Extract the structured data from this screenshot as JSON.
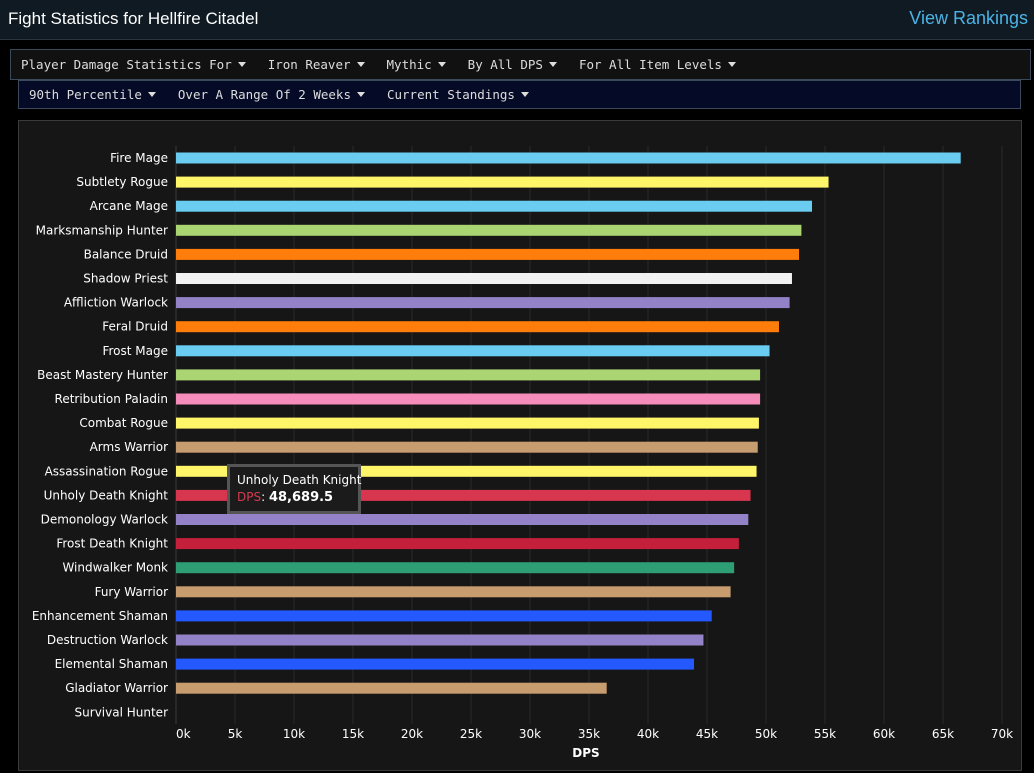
{
  "header": {
    "title": "Fight Statistics for Hellfire Citadel",
    "rankings_link": "View Rankings"
  },
  "filters_row1": [
    {
      "label": "Player Damage Statistics For",
      "name": "filter-statistics-type"
    },
    {
      "label": "Iron Reaver",
      "name": "filter-boss"
    },
    {
      "label": "Mythic",
      "name": "filter-difficulty"
    },
    {
      "label": "By All DPS",
      "name": "filter-metric"
    },
    {
      "label": "For All Item Levels",
      "name": "filter-item-level"
    }
  ],
  "filters_row2": [
    {
      "label": "90th Percentile",
      "name": "filter-percentile"
    },
    {
      "label": "Over A Range Of 2 Weeks",
      "name": "filter-range"
    },
    {
      "label": "Current Standings",
      "name": "filter-standings"
    }
  ],
  "tooltip": {
    "name": "Unholy Death Knight",
    "key": "DPS",
    "value": "48,689.5"
  },
  "chart_data": {
    "type": "bar",
    "orientation": "horizontal",
    "title": "",
    "xlabel": "DPS",
    "ylabel": "",
    "xlim": [
      0,
      70000
    ],
    "xticks": [
      0,
      5000,
      10000,
      15000,
      20000,
      25000,
      30000,
      35000,
      40000,
      45000,
      50000,
      55000,
      60000,
      65000,
      70000
    ],
    "xtick_labels": [
      "0k",
      "5k",
      "10k",
      "15k",
      "20k",
      "25k",
      "30k",
      "35k",
      "40k",
      "45k",
      "50k",
      "55k",
      "60k",
      "65k",
      "70k"
    ],
    "grid": true,
    "legend": "none",
    "categories": [
      "Fire Mage",
      "Subtlety Rogue",
      "Arcane Mage",
      "Marksmanship Hunter",
      "Balance Druid",
      "Shadow Priest",
      "Affliction Warlock",
      "Feral Druid",
      "Frost Mage",
      "Beast Mastery Hunter",
      "Retribution Paladin",
      "Combat Rogue",
      "Arms Warrior",
      "Assassination Rogue",
      "Unholy Death Knight",
      "Demonology Warlock",
      "Frost Death Knight",
      "Windwalker Monk",
      "Fury Warrior",
      "Enhancement Shaman",
      "Destruction Warlock",
      "Elemental Shaman",
      "Gladiator Warrior",
      "Survival Hunter"
    ],
    "values": [
      66500,
      55300,
      53900,
      53000,
      52800,
      52200,
      52000,
      51100,
      50300,
      49500,
      49500,
      49400,
      49300,
      49200,
      48689.5,
      48500,
      47700,
      47300,
      47000,
      45400,
      44700,
      43900,
      36500,
      0
    ],
    "colors": [
      "#69ccf0",
      "#fff569",
      "#69ccf0",
      "#abd473",
      "#ff7d0a",
      "#f2f2f2",
      "#9482c9",
      "#ff7d0a",
      "#69ccf0",
      "#abd473",
      "#f58cba",
      "#fff569",
      "#c79c6e",
      "#fff569",
      "#d8354f",
      "#9482c9",
      "#c41f3b",
      "#2e9e74",
      "#c79c6e",
      "#2459ff",
      "#9482c9",
      "#2459ff",
      "#c79c6e",
      "#abd473"
    ]
  }
}
